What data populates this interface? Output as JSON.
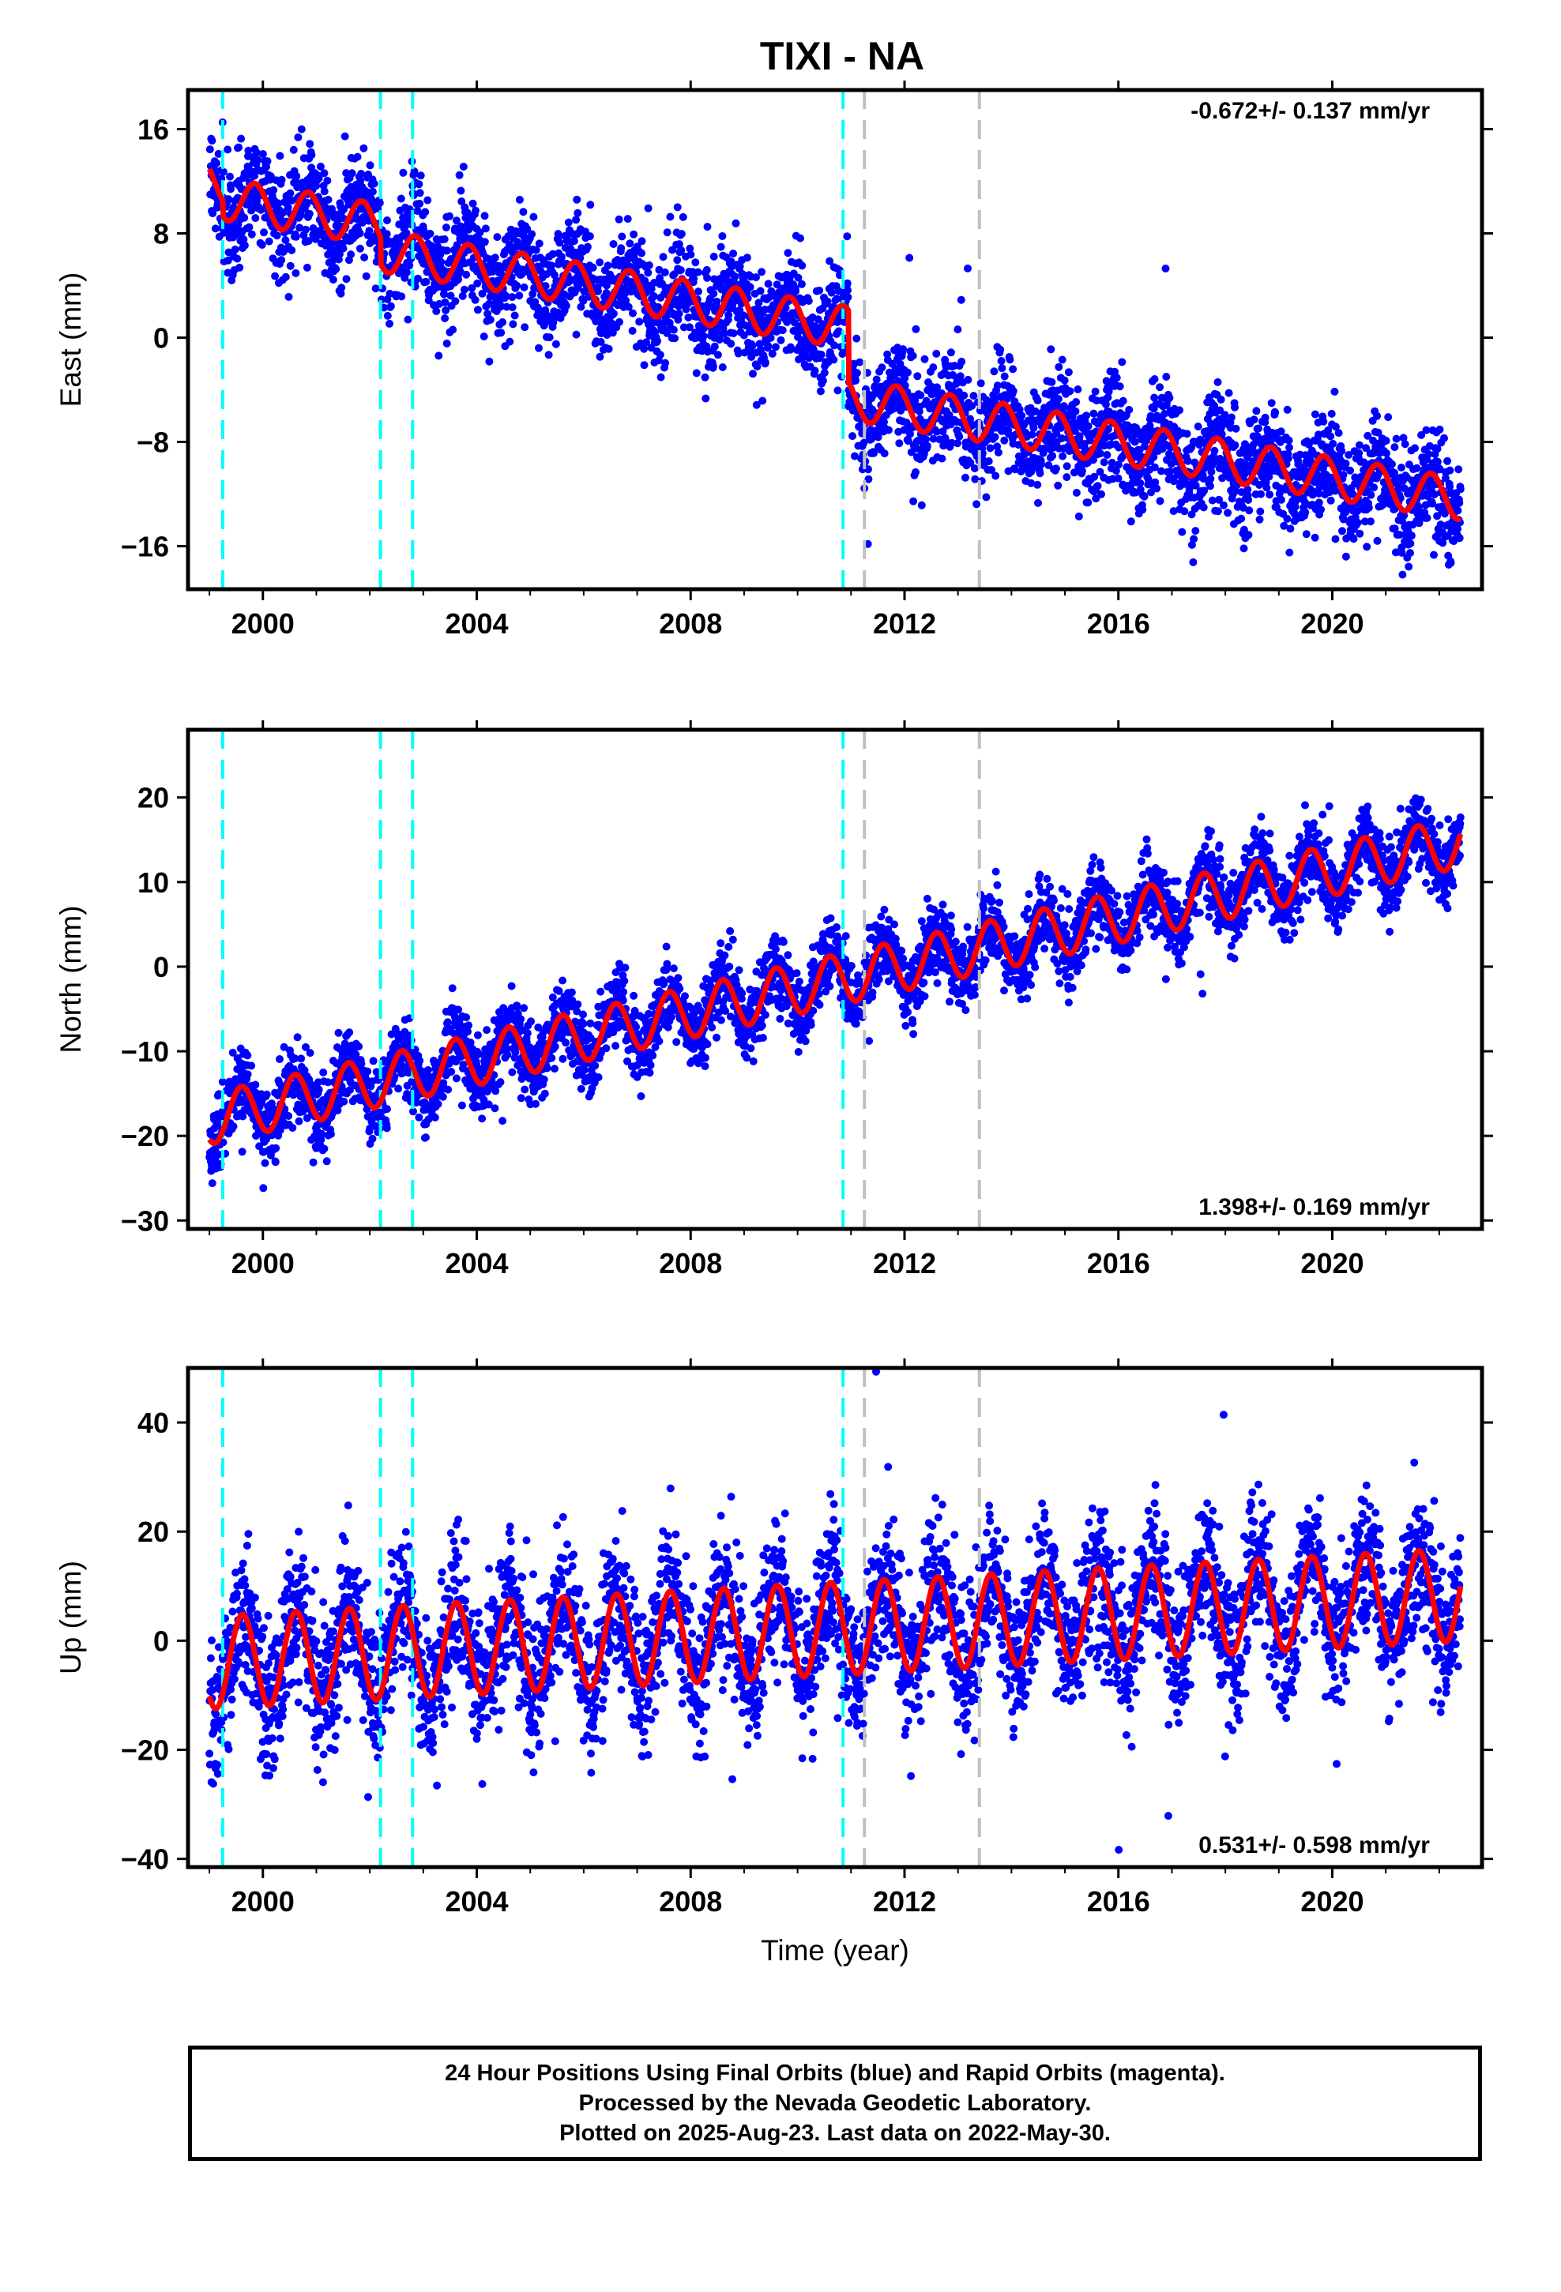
{
  "title": "TIXI - NA",
  "xlabel": "Time (year)",
  "caption": [
    "24 Hour Positions Using Final Orbits (blue) and Rapid Orbits (magenta).",
    "Processed by the Nevada Geodetic Laboratory.",
    "Plotted on 2025-Aug-23. Last data on 2022-May-30."
  ],
  "colors": {
    "points": "#0000ff",
    "model": "#ff0000",
    "equipment_change": "#00ffff",
    "earthquake": "#c0c0c0",
    "frame": "#000000"
  },
  "chart_data": [
    {
      "type": "scatter",
      "ylabel": "East (mm)",
      "rate_text": "-0.672+/- 0.137 mm/yr",
      "xlim": [
        1998.6,
        2022.8
      ],
      "ylim": [
        -19.3,
        19.0
      ],
      "xticks": [
        2000,
        2004,
        2008,
        2012,
        2016,
        2020
      ],
      "yticks": [
        16,
        8,
        0,
        -8,
        -16
      ],
      "ytick_labels": [
        "16",
        "8",
        "0",
        "−8",
        "−16"
      ],
      "model": {
        "start": 1999.0,
        "end": 2022.4,
        "offset_at_start": 12.0,
        "trend": -0.67,
        "annual_amplitude": 1.6,
        "annual_peak_phase": 0.85,
        "noise_sd": 2.0,
        "steps": [
          {
            "year": 1999.25,
            "value": -1.2
          },
          {
            "year": 2002.2,
            "value": -2.0
          },
          {
            "year": 2010.95,
            "value": -5.5
          }
        ]
      },
      "cyan_lines": [
        1999.25,
        2002.2,
        2002.8,
        2010.85
      ],
      "gray_lines": [
        2011.25,
        2013.4
      ]
    },
    {
      "type": "scatter",
      "ylabel": "North (mm)",
      "rate_text": "1.398+/- 0.169 mm/yr",
      "xlim": [
        1998.6,
        2022.8
      ],
      "ylim": [
        -31.0,
        28.0
      ],
      "xticks": [
        2000,
        2004,
        2008,
        2012,
        2016,
        2020
      ],
      "yticks": [
        20,
        10,
        0,
        -10,
        -20,
        -30
      ],
      "ytick_labels": [
        "20",
        "10",
        "0",
        "−10",
        "−20",
        "−30"
      ],
      "model": {
        "start": 1999.0,
        "end": 2022.4,
        "offset_at_start": -18.0,
        "trend": 1.4,
        "annual_amplitude": 3.0,
        "annual_peak_phase": 0.6,
        "noise_sd": 2.2,
        "steps": []
      },
      "cyan_lines": [
        1999.25,
        2002.2,
        2002.8,
        2010.85
      ],
      "gray_lines": [
        2011.25,
        2013.4
      ]
    },
    {
      "type": "scatter",
      "ylabel": "Up (mm)",
      "rate_text": "0.531+/- 0.598 mm/yr",
      "xlim": [
        1998.6,
        2022.8
      ],
      "ylim": [
        -41.5,
        50.0
      ],
      "xticks": [
        2000,
        2004,
        2008,
        2012,
        2016,
        2020
      ],
      "yticks": [
        40,
        20,
        0,
        -20,
        -40
      ],
      "ytick_labels": [
        "40",
        "20",
        "0",
        "−20",
        "−40"
      ],
      "model": {
        "start": 1999.0,
        "end": 2022.4,
        "offset_at_start": -4.0,
        "trend": 0.53,
        "annual_amplitude": 8.5,
        "annual_peak_phase": 0.62,
        "noise_sd": 6.5,
        "steps": []
      },
      "cyan_lines": [
        1999.25,
        2002.2,
        2002.8,
        2010.85
      ],
      "gray_lines": [
        2011.25,
        2013.4
      ]
    }
  ]
}
